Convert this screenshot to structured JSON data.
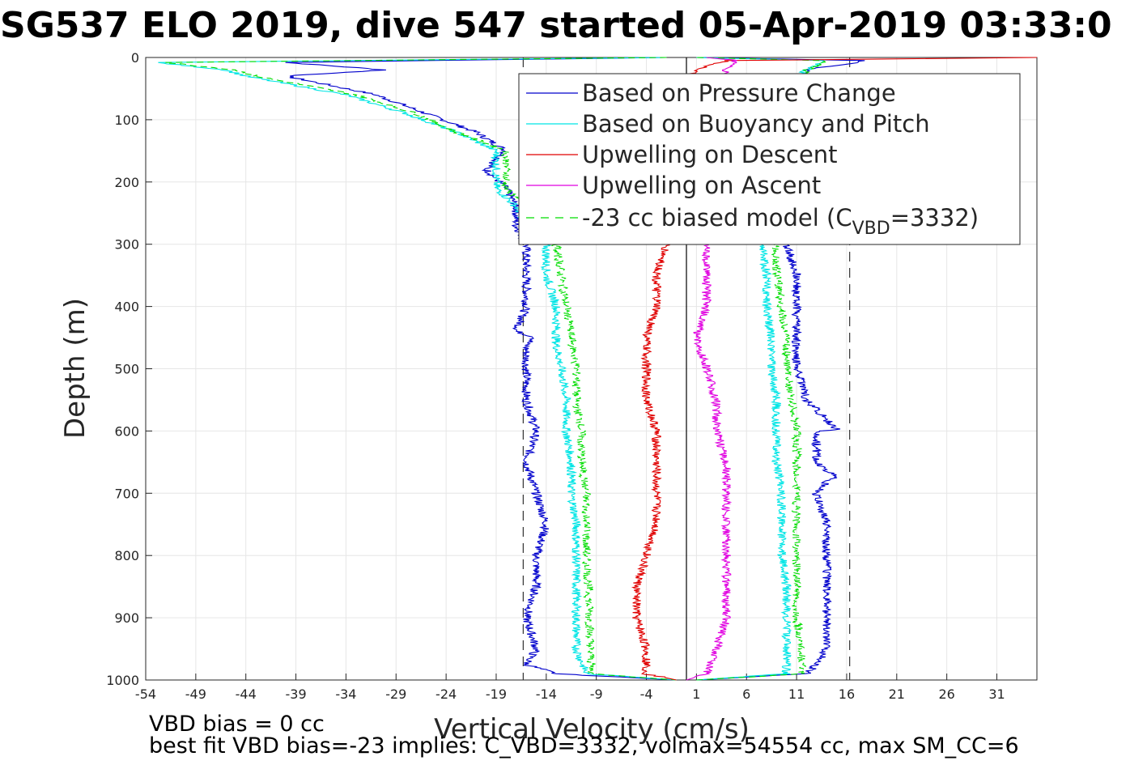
{
  "chart_data": {
    "type": "line",
    "title": "SG537 ELO 2019, dive 547 started 05-Apr-2019 03:33:0",
    "xlabel": "Vertical Velocity (cm/s)",
    "ylabel": "Depth (m)",
    "xlim": [
      -54,
      35
    ],
    "ylim": [
      0,
      1000
    ],
    "y_reversed": true,
    "grid": true,
    "x_ticks": [
      "-54",
      "-49",
      "-44",
      "-39",
      "-34",
      "-29",
      "-24",
      "-19",
      "-14",
      "-9",
      "-4",
      "1",
      "6",
      "11",
      "16",
      "21",
      "26",
      "31"
    ],
    "y_ticks": [
      "0",
      "100",
      "200",
      "300",
      "400",
      "500",
      "600",
      "700",
      "800",
      "900",
      "1000"
    ],
    "legend_position": "top-right",
    "legend_entries": [
      {
        "label": "Based on Pressure Change",
        "color": "#0000cc",
        "style": "solid"
      },
      {
        "label": "Based on Buoyancy and Pitch",
        "color": "#00e5e5",
        "style": "solid"
      },
      {
        "label": "Upwelling on Descent",
        "color": "#e00000",
        "style": "solid"
      },
      {
        "label": "Upwelling on Ascent",
        "color": "#e000e0",
        "style": "solid"
      },
      {
        "label_main": "-23 cc biased model (C",
        "label_sub": "VBD",
        "label_end": "=3332)",
        "color": "#00dd00",
        "style": "dashed"
      }
    ],
    "series": [
      {
        "key": "pressure_descent",
        "color": "#0000cc",
        "depth": [
          0,
          8,
          20,
          30,
          60,
          90,
          120,
          150,
          180,
          210,
          240,
          270,
          300,
          350,
          400,
          440,
          450,
          460,
          500,
          550,
          600,
          650,
          700,
          750,
          800,
          850,
          900,
          950,
          975,
          990,
          1000
        ],
        "velocity": [
          -2,
          -40,
          -30,
          -40,
          -31,
          -26,
          -21,
          -18,
          -20,
          -18,
          -17,
          -17,
          -16,
          -16,
          -16,
          -17,
          -15,
          -16,
          -16,
          -16,
          -15,
          -16,
          -15,
          -14,
          -15,
          -15,
          -16,
          -15,
          -16,
          -13,
          -1
        ]
      },
      {
        "key": "buoyancy_descent",
        "color": "#00e5e5",
        "depth": [
          0,
          8,
          20,
          30,
          60,
          90,
          120,
          150,
          180,
          210,
          240,
          270,
          300,
          350,
          400,
          440,
          460,
          500,
          550,
          600,
          650,
          700,
          750,
          800,
          850,
          900,
          950,
          990,
          1000
        ],
        "velocity": [
          -2,
          -53,
          -46,
          -44,
          -34,
          -28,
          -23,
          -19,
          -19,
          -19,
          -17,
          -16,
          -14,
          -14,
          -13,
          -13,
          -13,
          -12.5,
          -12,
          -12,
          -11.5,
          -11.5,
          -11,
          -11,
          -11,
          -11,
          -11,
          -10,
          -1
        ]
      },
      {
        "key": "model_descent",
        "color": "#00dd00",
        "depth": [
          0,
          8,
          20,
          30,
          60,
          90,
          120,
          150,
          180,
          210,
          240,
          270,
          300,
          350,
          400,
          450,
          500,
          550,
          600,
          650,
          700,
          750,
          800,
          850,
          900,
          950,
          990,
          1000
        ],
        "velocity": [
          -2,
          -52,
          -45,
          -43,
          -33,
          -27,
          -23,
          -18,
          -18,
          -18,
          -16,
          -15,
          -13,
          -12.5,
          -12,
          -11.5,
          -11,
          -11,
          -10.5,
          -10.5,
          -10,
          -10,
          -10,
          -9.8,
          -9.7,
          -9.6,
          -9.5,
          -1
        ]
      },
      {
        "key": "pressure_ascent",
        "color": "#0000cc",
        "depth": [
          1000,
          990,
          975,
          950,
          900,
          850,
          800,
          750,
          700,
          680,
          675,
          650,
          600,
          598,
          550,
          500,
          450,
          400,
          350,
          300,
          250,
          200,
          150,
          100,
          50,
          20,
          5,
          0
        ],
        "velocity": [
          1,
          12,
          13,
          14,
          14,
          14,
          14,
          14,
          13,
          14,
          15,
          13,
          13,
          15,
          12,
          11,
          11,
          11,
          11,
          10,
          10,
          10,
          10,
          10,
          11,
          12,
          18,
          1
        ]
      },
      {
        "key": "buoyancy_ascent",
        "color": "#00e5e5",
        "depth": [
          1000,
          990,
          950,
          900,
          850,
          800,
          750,
          700,
          650,
          600,
          550,
          500,
          450,
          400,
          350,
          300,
          250,
          200,
          150,
          100,
          50,
          20,
          5,
          0
        ],
        "velocity": [
          1,
          10,
          10,
          10,
          10,
          9.5,
          9.5,
          9.5,
          9,
          9,
          9,
          8.5,
          8.5,
          8,
          8,
          7.5,
          8,
          8,
          8,
          9,
          10,
          12,
          14,
          1
        ]
      },
      {
        "key": "model_ascent",
        "color": "#00dd00",
        "depth": [
          1000,
          990,
          950,
          900,
          850,
          800,
          750,
          700,
          650,
          600,
          550,
          500,
          450,
          400,
          350,
          300,
          250,
          200,
          150,
          100,
          50,
          20,
          5,
          0
        ],
        "velocity": [
          1,
          11.5,
          11.5,
          11,
          11,
          11,
          11,
          11,
          11,
          11,
          10.5,
          10,
          10,
          9.5,
          9,
          9,
          9,
          9,
          9,
          9.5,
          10.5,
          12,
          14,
          1
        ]
      },
      {
        "key": "upwelling_descent",
        "color": "#e00000",
        "depth": [
          0,
          5,
          20,
          50,
          100,
          200,
          300,
          350,
          400,
          450,
          500,
          550,
          600,
          650,
          700,
          750,
          800,
          850,
          900,
          950,
          990,
          1000
        ],
        "velocity": [
          35,
          4,
          1,
          -1,
          -1,
          -2,
          -2,
          -3,
          -3,
          -4,
          -4,
          -4,
          -3,
          -3,
          -3,
          -3,
          -4,
          -5,
          -5,
          -4,
          -4,
          -1
        ]
      },
      {
        "key": "upwelling_ascent",
        "color": "#e000e0",
        "depth": [
          1000,
          990,
          950,
          900,
          850,
          800,
          750,
          700,
          650,
          600,
          550,
          500,
          450,
          400,
          350,
          300,
          250,
          200,
          150,
          100,
          50,
          20,
          5,
          0
        ],
        "velocity": [
          0,
          2,
          3,
          4,
          4,
          4,
          4,
          4,
          4,
          3,
          3,
          2,
          1,
          2,
          2,
          2,
          2,
          2,
          2,
          3,
          3,
          4,
          5,
          2
        ]
      }
    ],
    "reference_lines": [
      {
        "type": "vertical",
        "x": -16.3,
        "style": "dashed",
        "color": "#333333"
      },
      {
        "type": "vertical",
        "x": 16.3,
        "style": "dashed",
        "color": "#333333"
      },
      {
        "type": "vertical",
        "x": 0,
        "style": "solid",
        "color": "#000000"
      }
    ],
    "annotations": [
      "VBD bias = 0 cc",
      "best fit VBD bias=-23 implies: C_VBD=3332, volmax=54554 cc, max SM_CC=6"
    ]
  }
}
